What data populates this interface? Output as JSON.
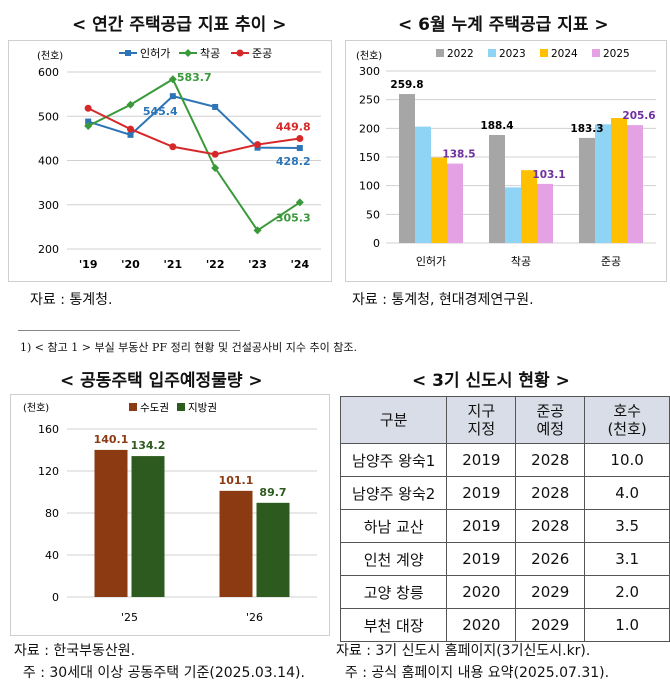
{
  "titles": {
    "chart1": "< 연간 주택공급 지표 추이 >",
    "chart2": "< 6월 누계 주택공급 지표 >",
    "chart3": "< 공동주택 입주예정물량 >",
    "table": "< 3기 신도시 현황 >"
  },
  "sources": {
    "chart1": "자료 : 통계청.",
    "chart2": "자료 : 통계청, 현대경제연구원.",
    "chart3": "자료 : 한국부동산원.",
    "chart3_note": "  주 : 30세대 이상 공동주택 기준(2025.03.14).",
    "table": "자료 : 3기 신도시 홈페이지(3기신도시.kr).",
    "table_note": "  주 : 공식 홈페이지 내용 요약(2025.07.31)."
  },
  "footnote": "1) < 참고 1 > 부실 부동산 PF 정리 현황 및 건설공사비 지수 추이 참조.",
  "colors": {
    "inheoga": "#2e75b6",
    "chakgong": "#3a9a3a",
    "jungong": "#d62828",
    "y2022": "#a6a6a6",
    "y2023": "#8fd3f5",
    "y2024": "#ffc000",
    "y2025": "#e4a2e4",
    "capital": "#8b3a12",
    "regional": "#2d5a1e",
    "label_purple": "#7030a0"
  },
  "chart_data": [
    {
      "type": "line",
      "unit": "(천호)",
      "x": [
        "'19",
        "'20",
        "'21",
        "'22",
        "'23",
        "'24"
      ],
      "ylim": [
        200,
        600
      ],
      "yticks": [
        200,
        300,
        400,
        500,
        600
      ],
      "series": [
        {
          "name": "인허가",
          "values": [
            488,
            458,
            545.4,
            521,
            429,
            428.2
          ]
        },
        {
          "name": "착공",
          "values": [
            478,
            526,
            583.7,
            383,
            242,
            305.3
          ]
        },
        {
          "name": "준공",
          "values": [
            518,
            471,
            431,
            414,
            436,
            449.8
          ]
        }
      ],
      "labels": [
        {
          "series": "인허가",
          "text": "545.4"
        },
        {
          "series": "인허가",
          "text": "428.2"
        },
        {
          "series": "착공",
          "text": "583.7"
        },
        {
          "series": "착공",
          "text": "305.3"
        },
        {
          "series": "준공",
          "text": "449.8"
        }
      ],
      "grid": true,
      "legend": "top"
    },
    {
      "type": "bar",
      "unit": "(천호)",
      "categories": [
        "인허가",
        "착공",
        "준공"
      ],
      "ylim": [
        0,
        300
      ],
      "yticks": [
        0,
        50,
        100,
        150,
        200,
        250,
        300
      ],
      "series": [
        {
          "name": "2022",
          "values": [
            259.8,
            188.4,
            183.3
          ]
        },
        {
          "name": "2023",
          "values": [
            203,
            97,
            207
          ]
        },
        {
          "name": "2024",
          "values": [
            149,
            127,
            218
          ]
        },
        {
          "name": "2025",
          "values": [
            138.5,
            103.1,
            205.6
          ]
        }
      ],
      "labels": [
        "259.8",
        "188.4",
        "183.3",
        "138.5",
        "103.1",
        "205.6"
      ],
      "grid": true,
      "legend": "top"
    },
    {
      "type": "bar",
      "unit": "(천호)",
      "categories": [
        "'25",
        "'26"
      ],
      "ylim": [
        0,
        160
      ],
      "yticks": [
        0,
        40,
        80,
        120,
        160
      ],
      "series": [
        {
          "name": "수도권",
          "values": [
            140.1,
            101.1
          ]
        },
        {
          "name": "지방권",
          "values": [
            134.2,
            89.7
          ]
        }
      ],
      "labels": [
        "140.1",
        "134.2",
        "101.1",
        "89.7"
      ],
      "grid": true,
      "legend": "top"
    }
  ],
  "table": {
    "headers": [
      "구분",
      "지구\n지정",
      "준공\n예정",
      "호수\n(천호)"
    ],
    "rows": [
      [
        "남양주 왕숙1",
        "2019",
        "2028",
        "10.0"
      ],
      [
        "남양주 왕숙2",
        "2019",
        "2028",
        "4.0"
      ],
      [
        "하남 교산",
        "2019",
        "2028",
        "3.5"
      ],
      [
        "인천 계양",
        "2019",
        "2026",
        "3.1"
      ],
      [
        "고양 창릉",
        "2020",
        "2029",
        "2.0"
      ],
      [
        "부천 대장",
        "2020",
        "2029",
        "1.0"
      ]
    ]
  }
}
